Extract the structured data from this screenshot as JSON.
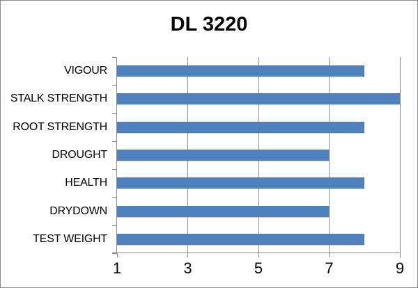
{
  "window": {
    "background_color": "#ffffff",
    "border_color": "#8a8a8a"
  },
  "chart_data": {
    "type": "bar",
    "orientation": "horizontal",
    "title": "DL 3220",
    "categories": [
      "VIGOUR",
      "STALK STRENGTH",
      "ROOT STRENGTH",
      "DROUGHT",
      "HEALTH",
      "DRYDOWN",
      "TEST WEIGHT"
    ],
    "values": [
      8,
      9,
      8,
      7,
      8,
      7,
      8
    ],
    "xlabel": "",
    "ylabel": "",
    "xlim": [
      1,
      9
    ],
    "x_ticks": [
      1,
      3,
      5,
      7,
      9
    ],
    "grid": "vertical-major",
    "legend": "none",
    "bar_color": "#4f81bd",
    "gridline_color": "#8f8f8f",
    "axis_color": "#878787",
    "text_color": "#000000"
  }
}
